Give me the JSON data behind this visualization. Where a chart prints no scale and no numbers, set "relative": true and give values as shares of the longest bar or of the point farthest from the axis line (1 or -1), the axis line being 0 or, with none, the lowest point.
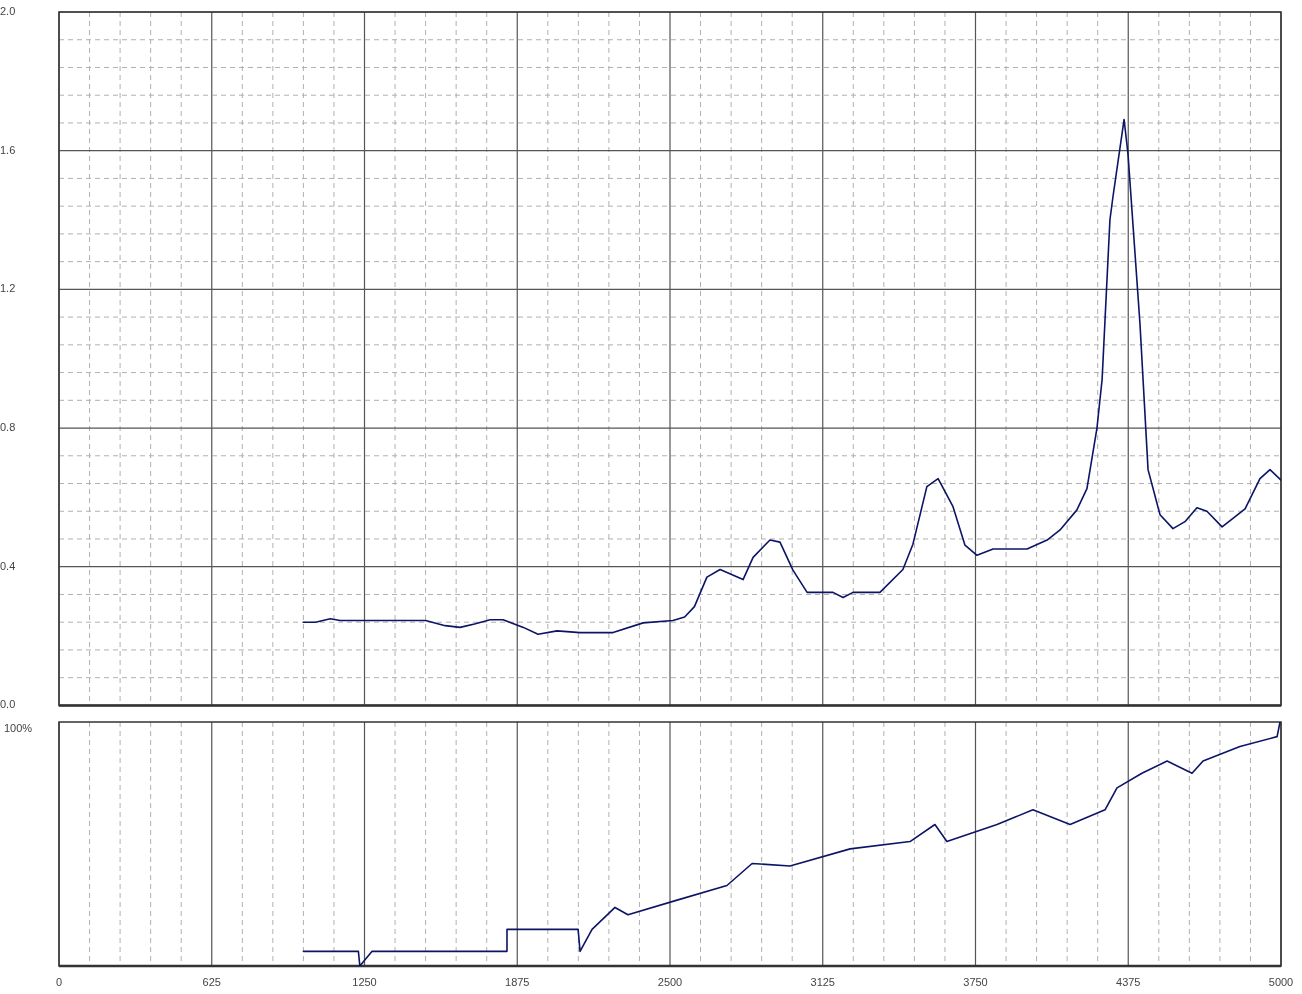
{
  "chart_data": [
    {
      "type": "line",
      "xlim": [
        0,
        5000
      ],
      "ylim": [
        0,
        2.0
      ],
      "grid": true,
      "tick_labels": "y",
      "marker": "none",
      "xticks": [
        0,
        {
          "value": 125,
          "label": null
        },
        {
          "value": 250,
          "label": null
        },
        {
          "value": 375,
          "label": null
        },
        {
          "value": 500,
          "label": null
        },
        625,
        {
          "value": 750,
          "label": null
        },
        {
          "value": 875,
          "label": null
        },
        {
          "value": 1000,
          "label": null
        },
        {
          "value": 1125,
          "label": null
        },
        1250,
        {
          "value": 1375,
          "label": null
        },
        {
          "value": 1500,
          "label": null
        },
        {
          "value": 1625,
          "label": null
        },
        {
          "value": 1750,
          "label": null
        },
        1875,
        {
          "value": 2000,
          "label": null
        },
        {
          "value": 2125,
          "label": null
        },
        {
          "value": 2250,
          "label": null
        },
        {
          "value": 2375,
          "label": null
        },
        2500,
        {
          "value": 2625,
          "label": null
        },
        {
          "value": 2750,
          "label": null
        },
        {
          "value": 2875,
          "label": null
        },
        {
          "value": 3000,
          "label": null
        },
        3125,
        {
          "value": 3250,
          "label": null
        },
        {
          "value": 3375,
          "label": null
        },
        {
          "value": 3500,
          "label": null
        },
        {
          "value": 3625,
          "label": null
        },
        3750,
        {
          "value": 3875,
          "label": null
        },
        {
          "value": 4000,
          "label": null
        },
        {
          "value": 4125,
          "label": null
        },
        {
          "value": 4250,
          "label": null
        },
        4375,
        {
          "value": 4500,
          "label": null
        },
        {
          "value": 4625,
          "label": null
        },
        {
          "value": 4750,
          "label": null
        },
        {
          "value": 4875,
          "label": null
        },
        5000
      ],
      "yticks": [
        {
          "value": 0,
          "label": "0.0"
        },
        {
          "value": 0.08,
          "label": null
        },
        {
          "value": 0.16,
          "label": null
        },
        {
          "value": 0.24,
          "label": null
        },
        {
          "value": 0.32,
          "label": null
        },
        0.4,
        {
          "value": 0.48,
          "label": null
        },
        {
          "value": 0.56,
          "label": null
        },
        {
          "value": 0.64,
          "label": null
        },
        {
          "value": 0.72,
          "label": null
        },
        0.8,
        {
          "value": 0.88,
          "label": null
        },
        {
          "value": 0.96,
          "label": null
        },
        {
          "value": 1.04,
          "label": null
        },
        {
          "value": 1.12,
          "label": null
        },
        1.2,
        {
          "value": 1.28,
          "label": null
        },
        {
          "value": 1.36,
          "label": null
        },
        {
          "value": 1.44,
          "label": null
        },
        {
          "value": 1.52,
          "label": null
        },
        1.6,
        {
          "value": 1.68,
          "label": null
        },
        {
          "value": 1.76,
          "label": null
        },
        {
          "value": 1.84,
          "label": null
        },
        {
          "value": 1.92,
          "label": null
        },
        {
          "value": 2.0,
          "label": "2.0"
        }
      ],
      "series": [
        {
          "color": "#0c1466",
          "x": [
            1000,
            1050,
            1110,
            1150,
            1500,
            1580,
            1641,
            1700,
            1764,
            1817,
            1900,
            1960,
            2038,
            2132,
            2267,
            2390,
            2512,
            2560,
            2600,
            2651,
            2705,
            2799,
            2840,
            2909,
            2950,
            3003,
            3061,
            3167,
            3208,
            3249,
            3359,
            3453,
            3494,
            3551,
            3597,
            3658,
            3707,
            3756,
            3822,
            3961,
            4043,
            4096,
            4165,
            4206,
            4247,
            4268,
            4300,
            4313,
            4358,
            4374,
            4423,
            4456,
            4505,
            4558,
            4607,
            4656,
            4697,
            4759,
            4853,
            4914,
            4955,
            5000
          ],
          "values": [
            0.24,
            0.24,
            0.25,
            0.245,
            0.245,
            0.23,
            0.225,
            0.235,
            0.247,
            0.247,
            0.225,
            0.205,
            0.215,
            0.21,
            0.21,
            0.238,
            0.245,
            0.255,
            0.285,
            0.37,
            0.392,
            0.363,
            0.427,
            0.477,
            0.471,
            0.39,
            0.326,
            0.326,
            0.311,
            0.326,
            0.326,
            0.392,
            0.465,
            0.631,
            0.654,
            0.573,
            0.462,
            0.433,
            0.451,
            0.451,
            0.477,
            0.506,
            0.564,
            0.625,
            0.8,
            0.94,
            1.4,
            1.47,
            1.69,
            1.59,
            1.1,
            0.68,
            0.55,
            0.51,
            0.53,
            0.57,
            0.56,
            0.515,
            0.567,
            0.654,
            0.68,
            0.65
          ]
        }
      ]
    },
    {
      "type": "line",
      "xlim": [
        0,
        5000
      ],
      "relative": true,
      "annotations": [
        "100%"
      ],
      "grid": "x",
      "marker": "none",
      "xticks": [
        0,
        {
          "value": 125,
          "label": null
        },
        {
          "value": 250,
          "label": null
        },
        {
          "value": 375,
          "label": null
        },
        {
          "value": 500,
          "label": null
        },
        625,
        {
          "value": 750,
          "label": null
        },
        {
          "value": 875,
          "label": null
        },
        {
          "value": 1000,
          "label": null
        },
        {
          "value": 1125,
          "label": null
        },
        1250,
        {
          "value": 1375,
          "label": null
        },
        {
          "value": 1500,
          "label": null
        },
        {
          "value": 1625,
          "label": null
        },
        {
          "value": 1750,
          "label": null
        },
        1875,
        {
          "value": 2000,
          "label": null
        },
        {
          "value": 2125,
          "label": null
        },
        {
          "value": 2250,
          "label": null
        },
        {
          "value": 2375,
          "label": null
        },
        2500,
        {
          "value": 2625,
          "label": null
        },
        {
          "value": 2750,
          "label": null
        },
        {
          "value": 2875,
          "label": null
        },
        {
          "value": 3000,
          "label": null
        },
        3125,
        {
          "value": 3250,
          "label": null
        },
        {
          "value": 3375,
          "label": null
        },
        {
          "value": 3500,
          "label": null
        },
        {
          "value": 3625,
          "label": null
        },
        3750,
        {
          "value": 3875,
          "label": null
        },
        {
          "value": 4000,
          "label": null
        },
        {
          "value": 4125,
          "label": null
        },
        {
          "value": 4250,
          "label": null
        },
        4375,
        {
          "value": 4500,
          "label": null
        },
        {
          "value": 4625,
          "label": null
        },
        {
          "value": 4750,
          "label": null
        },
        {
          "value": 4875,
          "label": null
        },
        5000
      ],
      "series": [
        {
          "color": "#0c1466",
          "x": [
            1000,
            1225,
            1231,
            1281,
            1830,
            1833,
            2124,
            2132,
            2181,
            2275,
            2328,
            2529,
            2733,
            2836,
            2991,
            3237,
            3482,
            3584,
            3633,
            3838,
            3985,
            4137,
            4280,
            4329,
            4431,
            4534,
            4636,
            4681,
            4832,
            4984,
            4996
          ],
          "values": [
            0.06,
            0.06,
            0,
            0.06,
            0.06,
            0.15,
            0.15,
            0.06,
            0.15,
            0.24,
            0.21,
            0.27,
            0.33,
            0.42,
            0.41,
            0.48,
            0.51,
            0.58,
            0.51,
            0.58,
            0.64,
            0.58,
            0.64,
            0.73,
            0.79,
            0.84,
            0.79,
            0.84,
            0.9,
            0.94,
            1
          ]
        }
      ]
    }
  ]
}
